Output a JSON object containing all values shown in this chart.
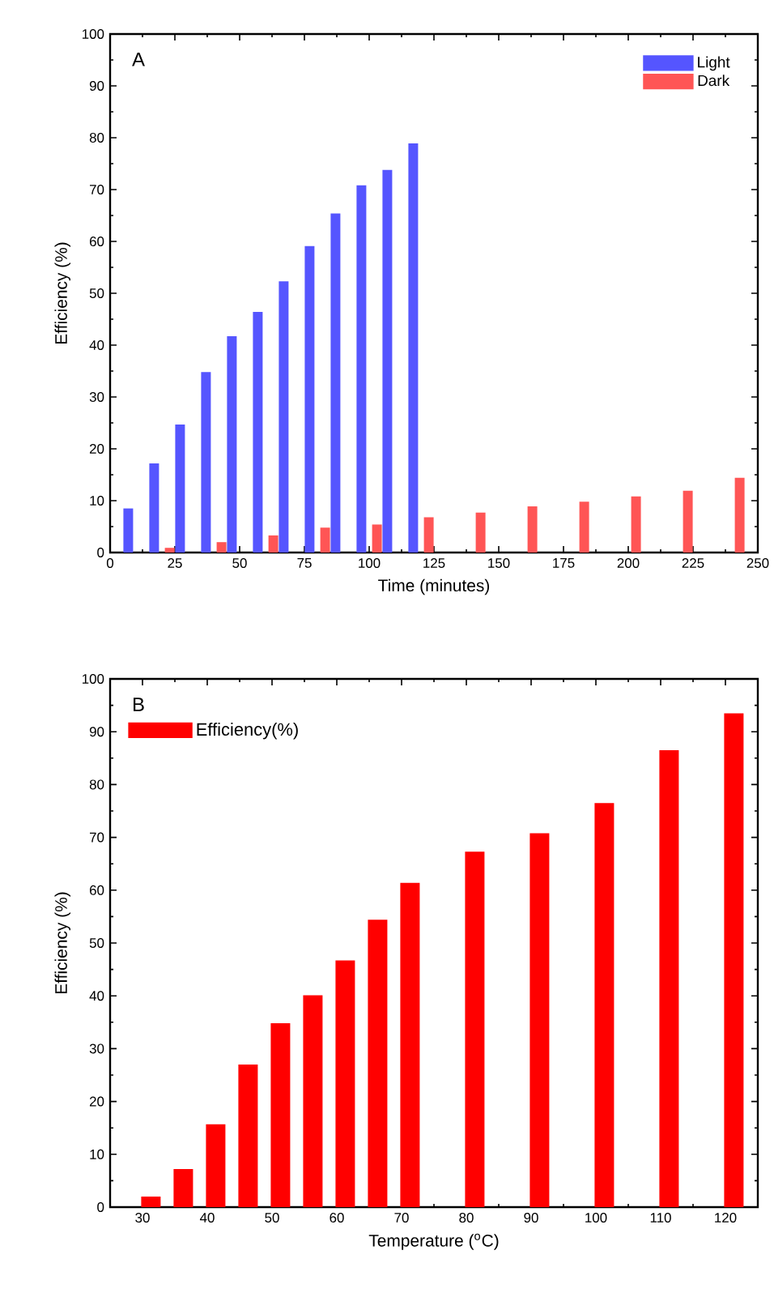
{
  "chart_data": [
    {
      "type": "bar",
      "xlabel": "Time (minutes)",
      "ylabel": "Efficiency (%)",
      "annotations": [
        "A"
      ],
      "legend": "top right",
      "xlim": [
        0,
        250
      ],
      "xticks": [
        0,
        25,
        50,
        75,
        100,
        125,
        150,
        175,
        200,
        225,
        250
      ],
      "ylim": [
        0,
        100
      ],
      "yticks": [
        0,
        10,
        20,
        30,
        40,
        50,
        60,
        70,
        80,
        90,
        100
      ],
      "series": [
        {
          "name": "Light",
          "color": "#5555ff",
          "x": [
            7,
            17,
            27,
            37,
            47,
            57,
            67,
            77,
            87,
            97,
            107,
            117
          ],
          "values": [
            8.5,
            17.2,
            24.7,
            34.8,
            41.7,
            46.4,
            52.3,
            59.1,
            65.4,
            70.8,
            73.8,
            78.9
          ]
        },
        {
          "name": "Dark",
          "color": "#ff5555",
          "x": [
            23,
            43,
            63,
            83,
            103,
            123,
            143,
            163,
            183,
            203,
            223,
            243
          ],
          "values": [
            0.9,
            2.0,
            3.3,
            4.8,
            5.4,
            6.8,
            7.7,
            8.9,
            9.8,
            10.8,
            11.9,
            14.4
          ]
        }
      ]
    },
    {
      "type": "bar",
      "xlabel": "Temperature ($^{o}$C)",
      "ylabel": "Efficiency (%)",
      "annotations": [
        "B"
      ],
      "legend": "top left",
      "xlim": [
        25,
        125
      ],
      "xticks": [
        30,
        40,
        50,
        60,
        70,
        80,
        90,
        100,
        110,
        120
      ],
      "ylim": [
        0,
        100
      ],
      "yticks": [
        0,
        10,
        20,
        30,
        40,
        50,
        60,
        70,
        80,
        90,
        100
      ],
      "series": [
        {
          "name": "Efficiency(%)",
          "color": "#ff0000",
          "x": [
            31.3,
            36.3,
            41.3,
            46.3,
            51.3,
            56.3,
            61.3,
            66.3,
            71.3,
            81.3,
            91.3,
            101.3,
            111.3,
            121.3
          ],
          "values": [
            2.0,
            7.2,
            15.7,
            27.0,
            34.8,
            40.1,
            46.7,
            54.4,
            61.4,
            67.3,
            70.8,
            76.5,
            86.5,
            93.5
          ]
        }
      ]
    }
  ]
}
